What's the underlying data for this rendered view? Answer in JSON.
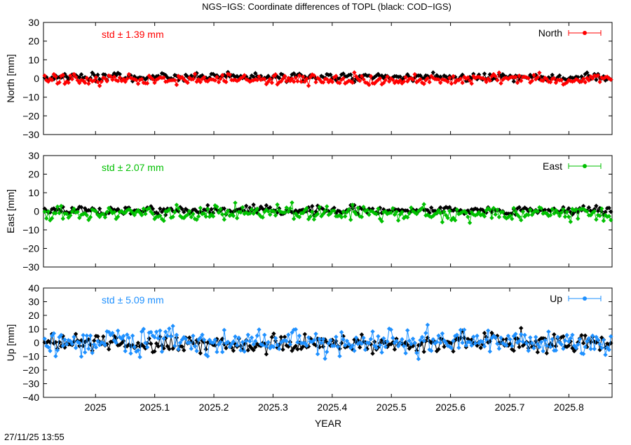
{
  "title": "NGS−IGS: Coordinate differences of TOPL (black: COD−IGS)",
  "timestamp": "27/11/25 13:55",
  "xlabel": "YEAR",
  "x_ticks": [
    "2025",
    "2025.1",
    "2025.2",
    "2025.3",
    "2025.4",
    "2025.5",
    "2025.6",
    "2025.7",
    "2025.8"
  ],
  "chart_data": [
    {
      "type": "line",
      "ylabel": "North [mm]",
      "xlim": [
        2024.912,
        2025.873
      ],
      "ylim": [
        -30,
        30
      ],
      "y_ticks": [
        "30",
        "20",
        "10",
        "0",
        "−10",
        "−20",
        "−30"
      ],
      "std_label": "std ± 1.39 mm",
      "legend": "top-right",
      "series": [
        {
          "name": "North",
          "color": "#ff0000",
          "mean": -0.5,
          "amplitude": 1.4,
          "seed": 11
        },
        {
          "color": "#000000",
          "mean": 0.8,
          "amplitude": 1.0,
          "seed": 12
        }
      ]
    },
    {
      "type": "line",
      "ylabel": "East [mm]",
      "xlim": [
        2024.912,
        2025.873
      ],
      "ylim": [
        -30,
        30
      ],
      "y_ticks": [
        "30",
        "20",
        "10",
        "0",
        "−10",
        "−20",
        "−30"
      ],
      "std_label": "std ± 2.07 mm",
      "legend": "top-right",
      "series": [
        {
          "name": "East",
          "color": "#00c000",
          "mean": -1.2,
          "amplitude": 1.9,
          "seed": 21
        },
        {
          "color": "#000000",
          "mean": 0.6,
          "amplitude": 1.1,
          "seed": 22
        }
      ]
    },
    {
      "type": "line",
      "ylabel": "Up [mm]",
      "xlim": [
        2024.912,
        2025.873
      ],
      "ylim": [
        -40,
        40
      ],
      "y_ticks": [
        "40",
        "30",
        "20",
        "10",
        "0",
        "−10",
        "−20",
        "−30",
        "−40"
      ],
      "std_label": "std ± 5.09 mm",
      "legend": "top-right",
      "series": [
        {
          "name": "Up",
          "color": "#1e90ff",
          "mean": 0.5,
          "amplitude": 4.8,
          "seed": 31
        },
        {
          "color": "#000000",
          "mean": -0.5,
          "amplitude": 3.0,
          "seed": 32
        }
      ]
    }
  ]
}
